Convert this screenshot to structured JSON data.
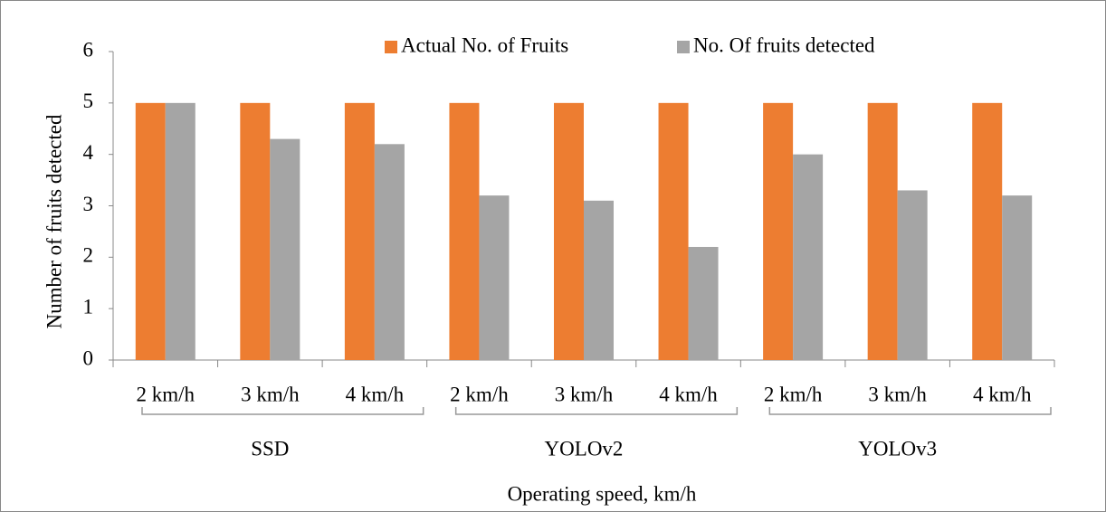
{
  "chart_data": {
    "type": "bar",
    "ylabel": "Number of fruits detected",
    "xlabel": "Operating speed, km/h",
    "categories": [
      "2 km/h",
      "3 km/h",
      "4 km/h",
      "2 km/h",
      "3 km/h",
      "4 km/h",
      "2 km/h",
      "3 km/h",
      "4 km/h"
    ],
    "category_groups": [
      "SSD",
      "YOLOv2",
      "YOLOv3"
    ],
    "series": [
      {
        "name": "Actual No. of Fruits",
        "color": "#ed7d31",
        "values": [
          5,
          5,
          5,
          5,
          5,
          5,
          5,
          5,
          5
        ]
      },
      {
        "name": "No. Of fruits detected",
        "color": "#a5a5a5",
        "values": [
          5,
          4.3,
          4.2,
          3.2,
          3.1,
          2.2,
          4.0,
          3.3,
          3.2
        ]
      }
    ],
    "ylim": [
      0,
      6
    ],
    "yticks": [
      0,
      1,
      2,
      3,
      4,
      5,
      6
    ],
    "grid": false,
    "legend": "top"
  }
}
